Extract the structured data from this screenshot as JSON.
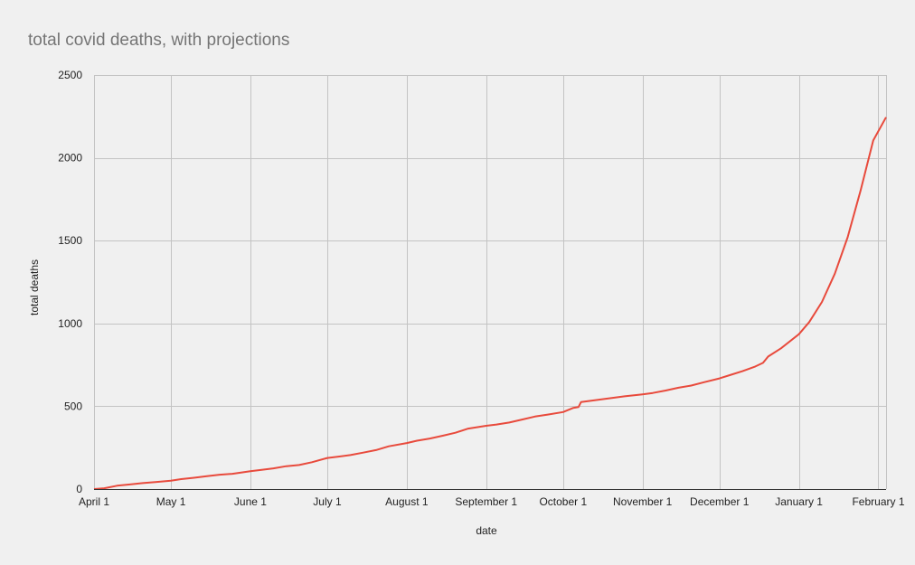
{
  "chart_data": {
    "type": "line",
    "title": "total covid deaths, with projections",
    "xlabel": "date",
    "ylabel": "total deaths",
    "ylim": [
      0,
      2500
    ],
    "yticks": [
      0,
      500,
      1000,
      1500,
      2000,
      2500
    ],
    "xlim": [
      "2020-04-01",
      "2021-02-04"
    ],
    "xticks": [
      {
        "date": "2020-04-01",
        "label": "April 1"
      },
      {
        "date": "2020-05-01",
        "label": "May 1"
      },
      {
        "date": "2020-06-01",
        "label": "June 1"
      },
      {
        "date": "2020-07-01",
        "label": "July 1"
      },
      {
        "date": "2020-08-01",
        "label": "August 1"
      },
      {
        "date": "2020-09-01",
        "label": "September 1"
      },
      {
        "date": "2020-10-01",
        "label": "October 1"
      },
      {
        "date": "2020-11-01",
        "label": "November 1"
      },
      {
        "date": "2020-12-01",
        "label": "December 1"
      },
      {
        "date": "2021-01-01",
        "label": "January 1"
      },
      {
        "date": "2021-02-01",
        "label": "February 1"
      }
    ],
    "grid": true,
    "legend": "none",
    "series": [
      {
        "color": "#e84a3c",
        "points": [
          [
            "2020-04-01",
            0
          ],
          [
            "2020-04-05",
            5
          ],
          [
            "2020-04-10",
            20
          ],
          [
            "2020-04-15",
            28
          ],
          [
            "2020-04-20",
            36
          ],
          [
            "2020-04-25",
            42
          ],
          [
            "2020-05-01",
            50
          ],
          [
            "2020-05-05",
            60
          ],
          [
            "2020-05-10",
            68
          ],
          [
            "2020-05-15",
            78
          ],
          [
            "2020-05-20",
            87
          ],
          [
            "2020-05-25",
            92
          ],
          [
            "2020-06-01",
            108
          ],
          [
            "2020-06-05",
            115
          ],
          [
            "2020-06-10",
            125
          ],
          [
            "2020-06-15",
            138
          ],
          [
            "2020-06-20",
            145
          ],
          [
            "2020-06-25",
            162
          ],
          [
            "2020-07-01",
            188
          ],
          [
            "2020-07-05",
            195
          ],
          [
            "2020-07-10",
            205
          ],
          [
            "2020-07-15",
            220
          ],
          [
            "2020-07-20",
            235
          ],
          [
            "2020-07-25",
            258
          ],
          [
            "2020-08-01",
            278
          ],
          [
            "2020-08-05",
            292
          ],
          [
            "2020-08-10",
            305
          ],
          [
            "2020-08-15",
            322
          ],
          [
            "2020-08-20",
            340
          ],
          [
            "2020-08-25",
            365
          ],
          [
            "2020-09-01",
            382
          ],
          [
            "2020-09-05",
            390
          ],
          [
            "2020-09-10",
            402
          ],
          [
            "2020-09-15",
            420
          ],
          [
            "2020-09-20",
            438
          ],
          [
            "2020-09-25",
            450
          ],
          [
            "2020-10-01",
            465
          ],
          [
            "2020-10-05",
            490
          ],
          [
            "2020-10-07",
            495
          ],
          [
            "2020-10-08",
            525
          ],
          [
            "2020-10-15",
            540
          ],
          [
            "2020-10-20",
            550
          ],
          [
            "2020-10-25",
            560
          ],
          [
            "2020-11-01",
            572
          ],
          [
            "2020-11-05",
            580
          ],
          [
            "2020-11-10",
            595
          ],
          [
            "2020-11-15",
            612
          ],
          [
            "2020-11-20",
            625
          ],
          [
            "2020-11-25",
            645
          ],
          [
            "2020-12-01",
            668
          ],
          [
            "2020-12-05",
            688
          ],
          [
            "2020-12-10",
            712
          ],
          [
            "2020-12-15",
            740
          ],
          [
            "2020-12-18",
            762
          ],
          [
            "2020-12-20",
            800
          ],
          [
            "2020-12-25",
            850
          ],
          [
            "2021-01-01",
            935
          ],
          [
            "2021-01-05",
            1008
          ],
          [
            "2021-01-10",
            1130
          ],
          [
            "2021-01-15",
            1300
          ],
          [
            "2021-01-20",
            1520
          ],
          [
            "2021-01-25",
            1800
          ],
          [
            "2021-01-30",
            2105
          ],
          [
            "2021-02-04",
            2245
          ]
        ]
      }
    ]
  }
}
